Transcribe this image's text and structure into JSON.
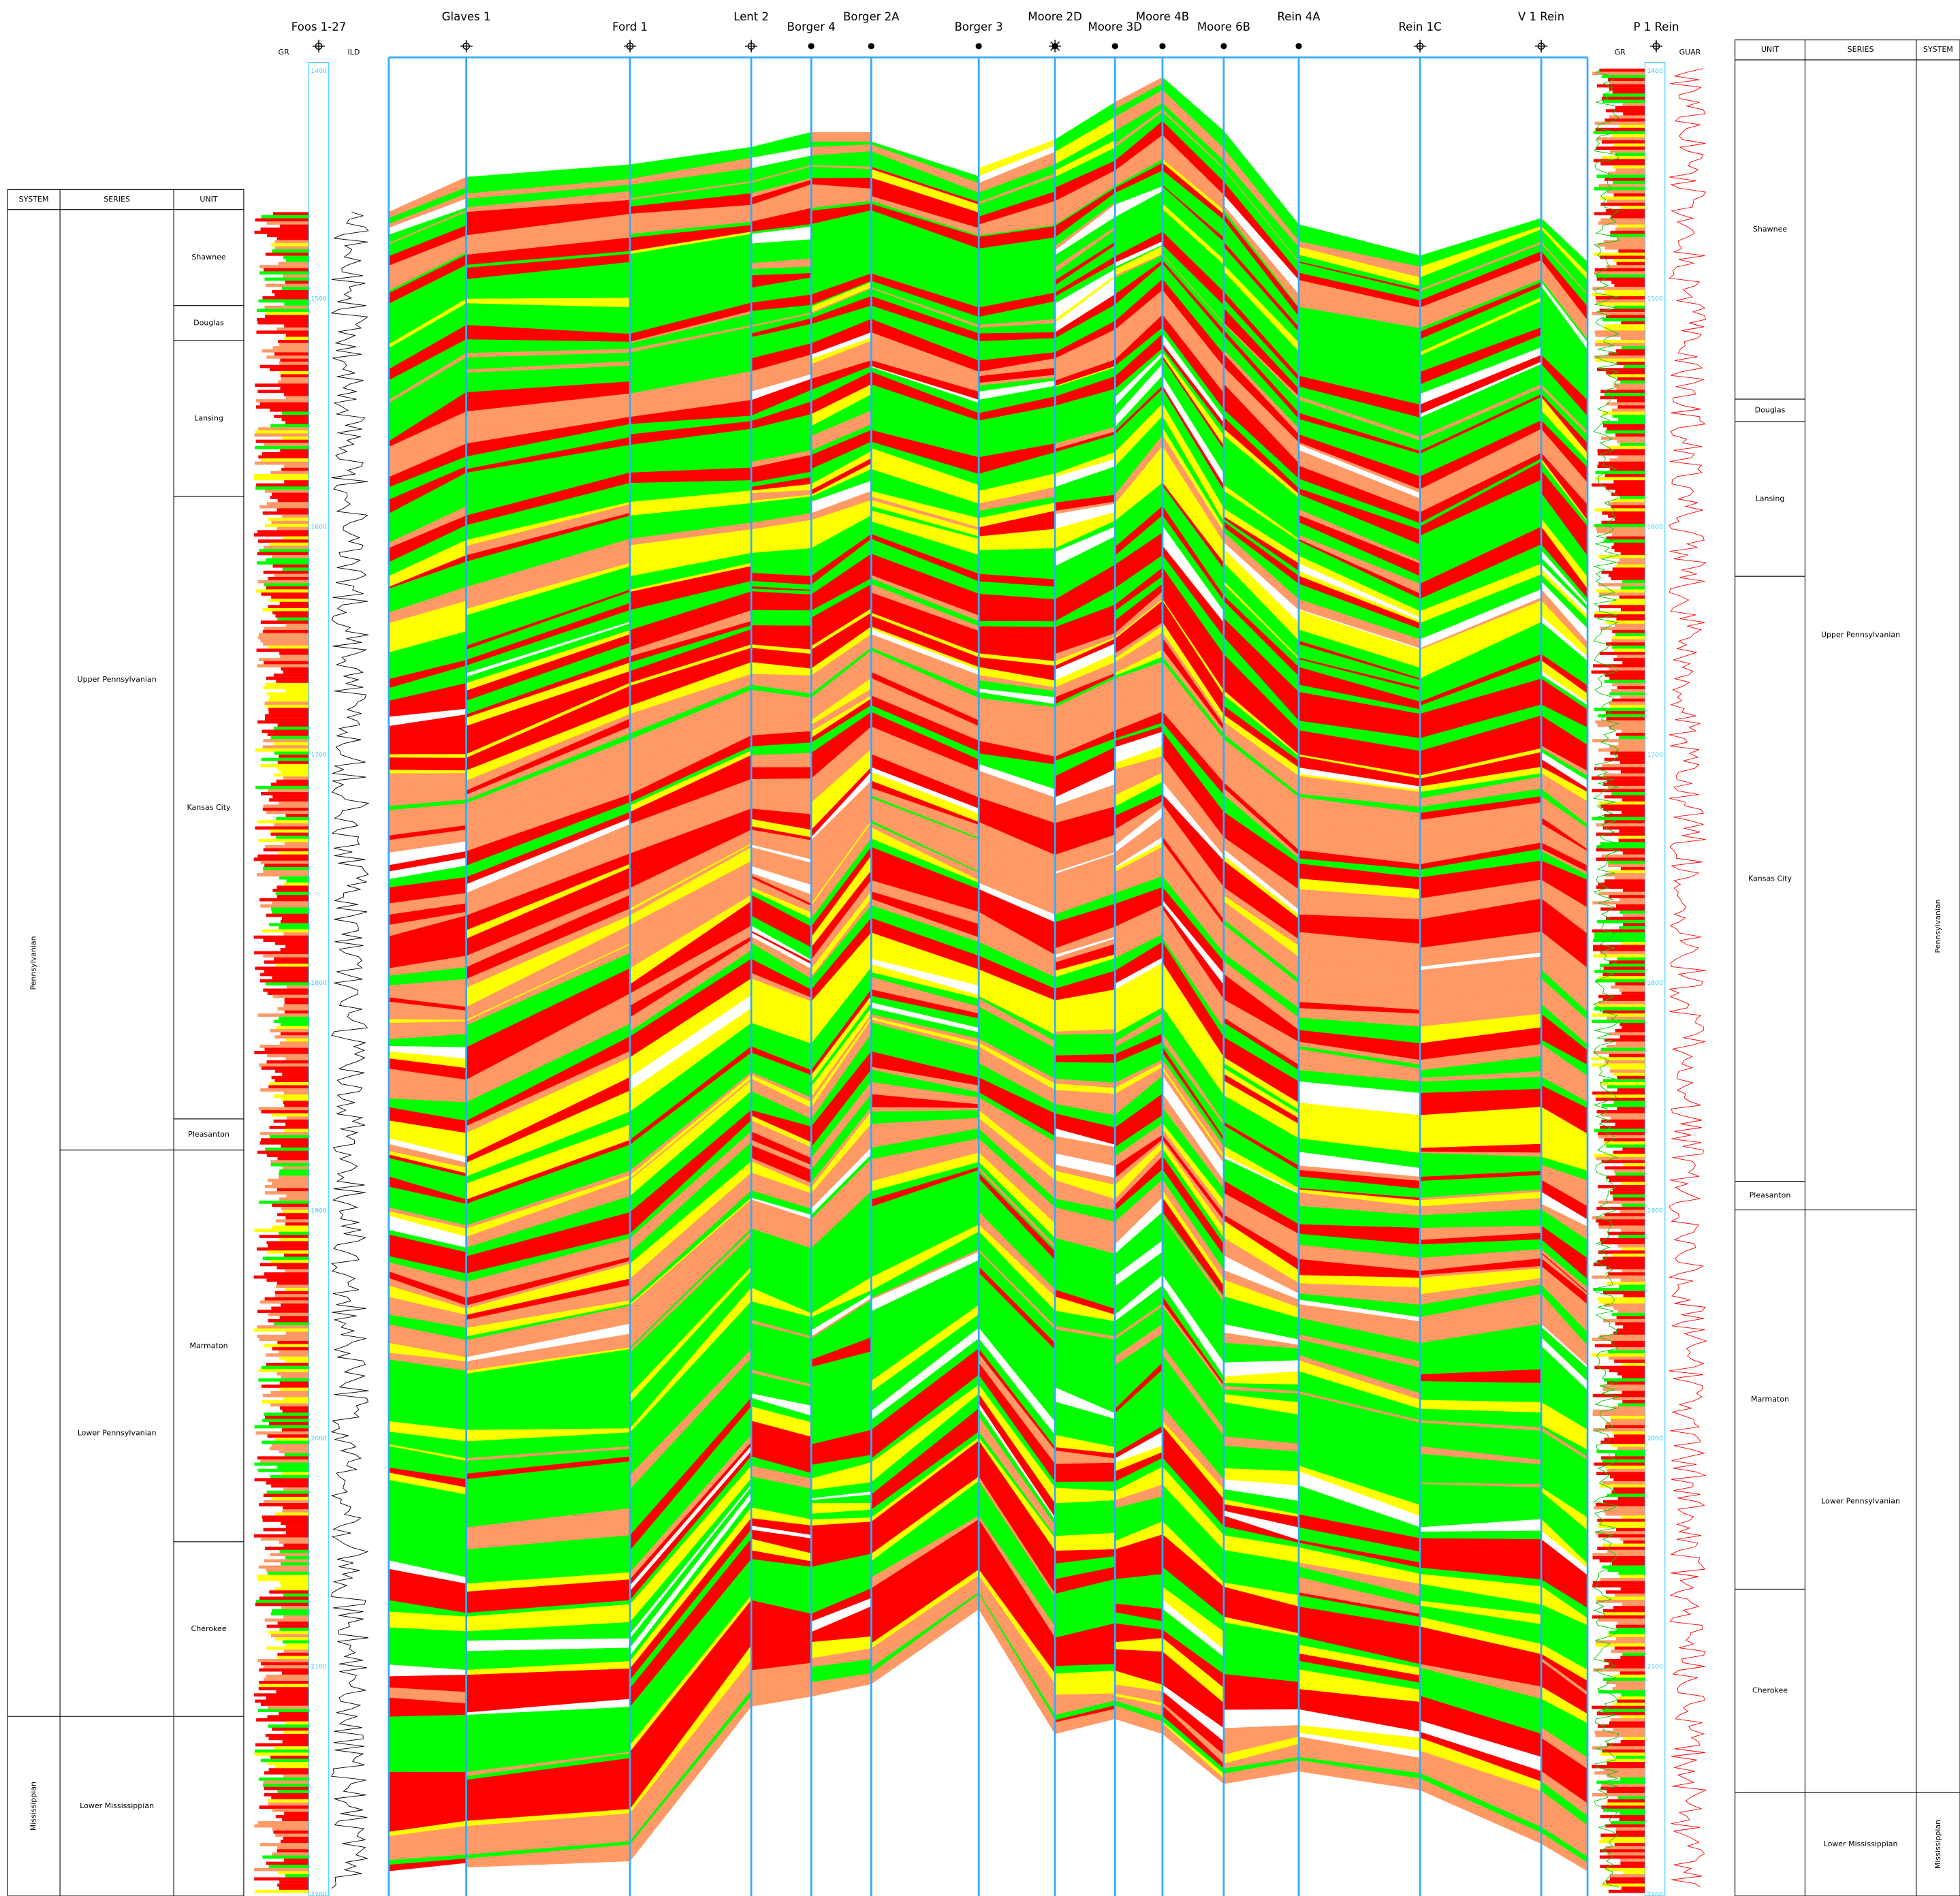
{
  "wells": [
    {
      "name": "Foos 1-27",
      "symbol": "dry"
    },
    {
      "name": "Glaves 1",
      "symbol": "dry"
    },
    {
      "name": "Ford 1",
      "symbol": "dry"
    },
    {
      "name": "Lent 2",
      "symbol": "dry"
    },
    {
      "name": "Borger 4",
      "symbol": "oil"
    },
    {
      "name": "Borger 2A",
      "symbol": "oil"
    },
    {
      "name": "Borger 3",
      "symbol": "oil"
    },
    {
      "name": "Moore 2D",
      "symbol": "gas"
    },
    {
      "name": "Moore 3D",
      "symbol": "oil"
    },
    {
      "name": "Moore 4B",
      "symbol": "oil"
    },
    {
      "name": "Moore 6B",
      "symbol": "oil"
    },
    {
      "name": "Rein 4A",
      "symbol": "oil"
    },
    {
      "name": "Rein 1C",
      "symbol": "dry"
    },
    {
      "name": "V 1 Rein",
      "symbol": "dry"
    },
    {
      "name": "P 1 Rein",
      "symbol": "dry"
    }
  ],
  "left_log": {
    "curves": [
      "GR",
      "ILD"
    ],
    "depths": [
      1400,
      1500,
      1600,
      1700,
      1800,
      1900,
      2000,
      2100,
      2200
    ]
  },
  "right_log": {
    "curves": [
      "GR",
      "GUAR"
    ],
    "depths": [
      1400,
      1500,
      1600,
      1700,
      1800,
      1900,
      2000,
      2100,
      2200
    ]
  },
  "left_column": {
    "headers": [
      "SYSTEM",
      "SERIES",
      "UNIT"
    ],
    "systems": [
      "Pennsylvanian",
      "Mississippian"
    ],
    "series": [
      "Upper Pennsylvanian",
      "Lower Pennsylvanian",
      "Lower Mississippian"
    ],
    "units": [
      "Shawnee",
      "Douglas",
      "Lansing",
      "Kansas City",
      "Pleasanton",
      "Marmaton",
      "Cherokee"
    ]
  },
  "right_column": {
    "headers": [
      "UNIT",
      "SERIES",
      "SYSTEM"
    ],
    "systems": [
      "Pennsylvanian",
      "Mississippian"
    ],
    "series": [
      "Upper Pennsylvanian",
      "Lower Pennsylvanian",
      "Lower Mississippian"
    ],
    "units": [
      "Shawnee",
      "Douglas",
      "Lansing",
      "Kansas City",
      "Pleasanton",
      "Marmaton",
      "Cherokee"
    ]
  }
}
